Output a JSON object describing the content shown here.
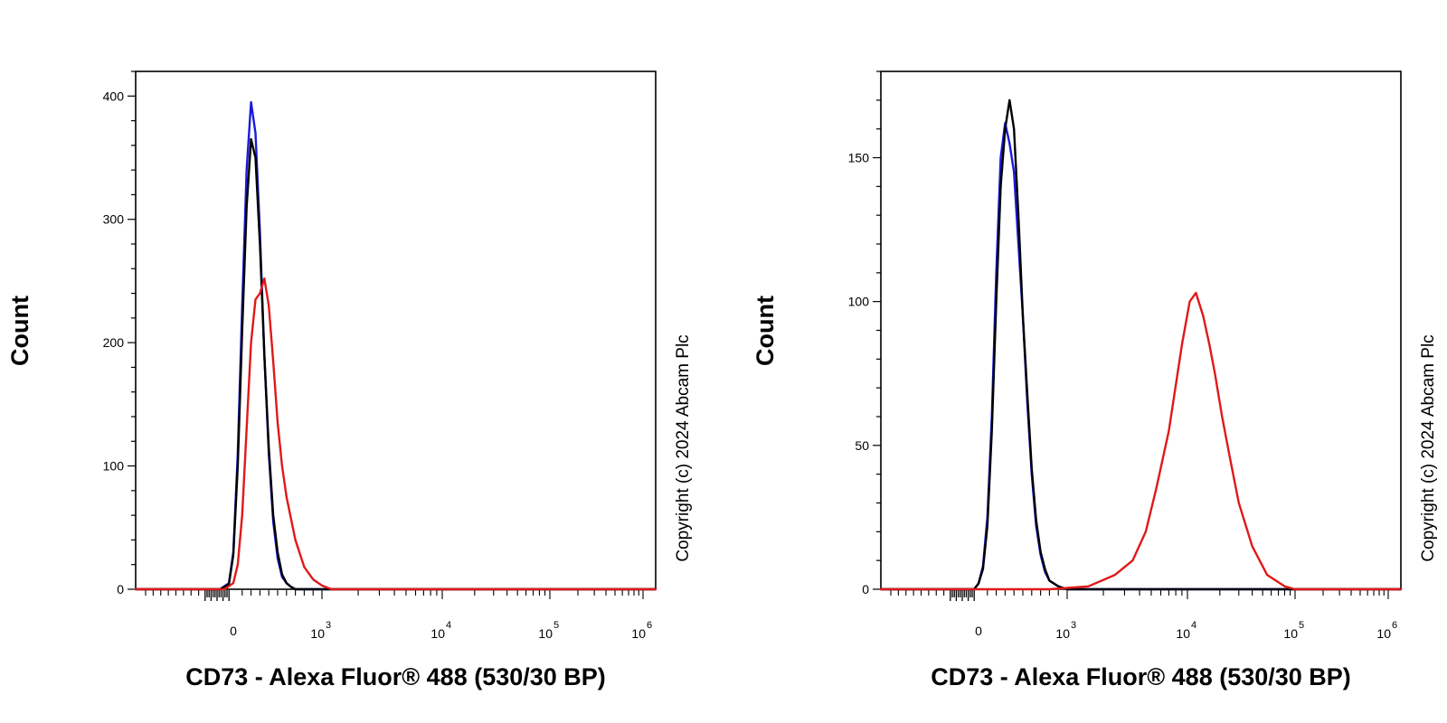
{
  "colors": {
    "blue": "#1a1adc",
    "black": "#000000",
    "red": "#e01919"
  },
  "chart_data": [
    {
      "type": "line",
      "xlabel": "CD73 - Alexa Fluor® 488 (530/30 BP)",
      "ylabel": "Count",
      "x_scale": "biexponential",
      "x_ticks": [
        {
          "value": 0,
          "label": "0"
        },
        {
          "value": 1000,
          "base": "10",
          "exp": "3"
        },
        {
          "value": 10000,
          "base": "10",
          "exp": "4"
        },
        {
          "value": 100000,
          "base": "10",
          "exp": "5"
        },
        {
          "value": 1000000,
          "base": "10",
          "exp": "6"
        }
      ],
      "ylim": [
        0,
        420
      ],
      "y_ticks": [
        "0",
        "100",
        "200",
        "300",
        "400"
      ],
      "copyright": "Copyright (c) 2024 Abcam Plc",
      "series": [
        {
          "color": "blue",
          "x": [
            -150,
            -50,
            0,
            50,
            100,
            150,
            200,
            250,
            300,
            350,
            400,
            450,
            500,
            550,
            600,
            650,
            700,
            800
          ],
          "y": [
            0,
            5,
            30,
            110,
            230,
            340,
            395,
            370,
            290,
            190,
            110,
            55,
            25,
            10,
            5,
            2,
            0,
            0
          ]
        },
        {
          "color": "black",
          "x": [
            -150,
            -50,
            0,
            50,
            100,
            150,
            200,
            250,
            300,
            350,
            400,
            450,
            500,
            550,
            600,
            650,
            700,
            800
          ],
          "y": [
            0,
            4,
            28,
            100,
            210,
            310,
            365,
            350,
            280,
            190,
            115,
            60,
            30,
            12,
            5,
            2,
            0,
            0
          ]
        },
        {
          "color": "red",
          "x": [
            -100,
            0,
            50,
            100,
            150,
            200,
            250,
            300,
            350,
            400,
            450,
            500,
            550,
            600,
            700,
            800,
            900,
            1000,
            1200
          ],
          "y": [
            0,
            5,
            20,
            60,
            130,
            200,
            235,
            240,
            252,
            230,
            185,
            135,
            100,
            75,
            40,
            18,
            8,
            3,
            0
          ]
        }
      ]
    },
    {
      "type": "line",
      "xlabel": "CD73 - Alexa Fluor® 488 (530/30 BP)",
      "ylabel": "Count",
      "x_scale": "biexponential",
      "x_ticks": [
        {
          "value": 0,
          "label": "0"
        },
        {
          "value": 1000,
          "base": "10",
          "exp": "3"
        },
        {
          "value": 10000,
          "base": "10",
          "exp": "4"
        },
        {
          "value": 100000,
          "base": "10",
          "exp": "5"
        },
        {
          "value": 1000000,
          "base": "10",
          "exp": "6"
        }
      ],
      "ylim": [
        0,
        180
      ],
      "y_ticks": [
        "0",
        "50",
        "100",
        "150"
      ],
      "copyright": "Copyright (c) 2024 Abcam Plc",
      "series": [
        {
          "color": "blue",
          "x": [
            -50,
            0,
            50,
            100,
            150,
            200,
            250,
            300,
            350,
            400,
            450,
            500,
            550,
            600,
            650,
            700,
            750,
            800,
            900,
            1000
          ],
          "y": [
            0,
            2,
            8,
            25,
            60,
            110,
            150,
            162,
            155,
            145,
            120,
            95,
            65,
            40,
            22,
            12,
            6,
            3,
            1,
            0
          ]
        },
        {
          "color": "black",
          "x": [
            -50,
            0,
            50,
            100,
            150,
            200,
            250,
            300,
            350,
            400,
            450,
            500,
            550,
            600,
            650,
            700,
            750,
            800,
            900,
            1000
          ],
          "y": [
            0,
            2,
            7,
            22,
            55,
            100,
            140,
            160,
            170,
            160,
            130,
            95,
            68,
            42,
            24,
            13,
            7,
            3,
            1,
            0
          ]
        },
        {
          "color": "red",
          "x": [
            800,
            1500,
            2500,
            3500,
            4500,
            5500,
            7000,
            9000,
            10500,
            12000,
            14000,
            16000,
            18000,
            21000,
            25000,
            30000,
            40000,
            55000,
            80000,
            100000
          ],
          "y": [
            0,
            1,
            5,
            10,
            20,
            35,
            55,
            85,
            100,
            103,
            95,
            85,
            75,
            60,
            45,
            30,
            15,
            5,
            1,
            0
          ]
        }
      ]
    }
  ]
}
